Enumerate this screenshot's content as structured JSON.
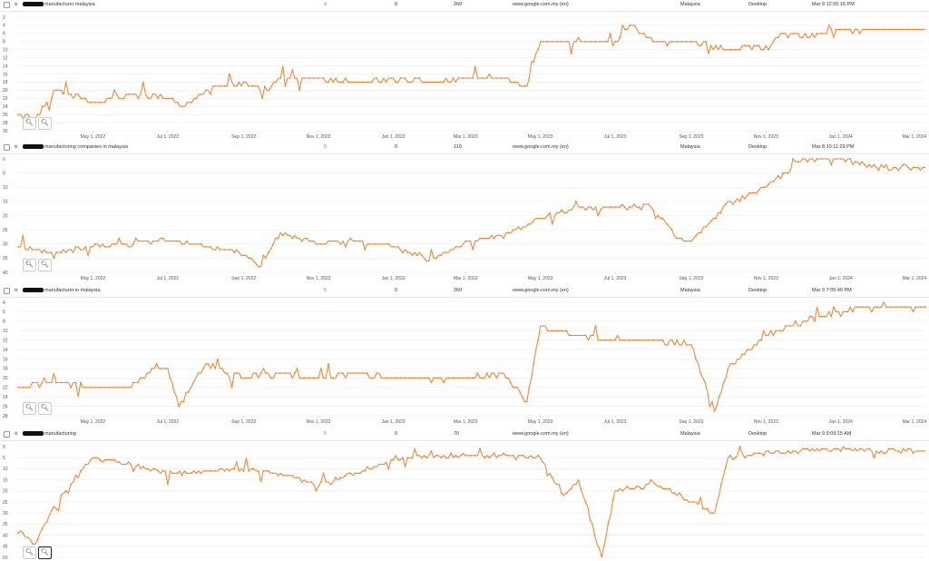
{
  "rows": [
    {
      "keyword": "manufacturer malaysia",
      "volume": "4",
      "col_b": "0",
      "col_c": "260",
      "engine": "www.google.com.my (en)",
      "country": "Malaysia",
      "device": "Desktop",
      "updated": "Mar 9 12:55:16 PM"
    },
    {
      "keyword": "manufacturing companies in malaysia",
      "volume": "5",
      "col_b": "0",
      "col_c": "110",
      "engine": "www.google.com.my (en)",
      "country": "Malaysia",
      "device": "Desktop",
      "updated": "Mar 8 10:11:29 PM"
    },
    {
      "keyword": "manufacturer in malaysia",
      "volume": "5",
      "col_b": "0",
      "col_c": "260",
      "engine": "www.google.com.my (en)",
      "country": "Malaysia",
      "device": "Desktop",
      "updated": "Mar 9 7:05:49 PM"
    },
    {
      "keyword": "manufacturing",
      "volume": "5",
      "col_b": "0",
      "col_c": "70",
      "engine": "www.google.com.my (en)",
      "country": "Malaysia",
      "device": "Desktop",
      "updated": "Mar 9 9:09:15 AM"
    }
  ],
  "zoom_icons": [
    "zoom-out-icon",
    "zoom-in-icon"
  ],
  "accent_color": "#f0883a",
  "chart_data": [
    {
      "type": "line",
      "ylim": [
        30,
        2
      ],
      "yticks": [
        "2",
        "4",
        "6",
        "8",
        "10",
        "12",
        "14",
        "16",
        "18",
        "20",
        "22",
        "24",
        "26",
        "28",
        "30"
      ],
      "xticks": [
        "May 1, 2022",
        "Jul 1, 2022",
        "Sep 1, 2022",
        "Nov 1, 2022",
        "Jan 1, 2023",
        "Mar 1, 2023",
        "May 1, 2023",
        "Jul 1, 2023",
        "Sep 1, 2023",
        "Nov 1, 2023",
        "Jan 1, 2024",
        "Mar 1, 2024"
      ],
      "x_range": [
        "2022-03-01",
        "2024-03-10"
      ],
      "series": [
        {
          "x": [
            "2022-03-01",
            "2022-03-15",
            "2022-04-01",
            "2022-05-01",
            "2022-06-01",
            "2022-07-01",
            "2022-07-15",
            "2022-08-01",
            "2022-09-01",
            "2022-09-20",
            "2022-10-01",
            "2022-11-01",
            "2022-12-01",
            "2023-01-01",
            "2023-02-01",
            "2023-03-01",
            "2023-04-01",
            "2023-04-20",
            "2023-05-01",
            "2023-06-01",
            "2023-07-01",
            "2023-07-15",
            "2023-08-01",
            "2023-09-01",
            "2023-10-01",
            "2023-11-01",
            "2023-11-15",
            "2023-12-01",
            "2024-01-01",
            "2024-02-01",
            "2024-03-10"
          ],
          "values": [
            26,
            27,
            20,
            23,
            21,
            22,
            24,
            20,
            18,
            20,
            17,
            17,
            18,
            17,
            18,
            17,
            17,
            19,
            8,
            8,
            8,
            4,
            8,
            8,
            10,
            9,
            6,
            7,
            5,
            5,
            5
          ]
        }
      ]
    },
    {
      "type": "line",
      "ylim": [
        40,
        0
      ],
      "yticks": [
        "0",
        "5",
        "10",
        "15",
        "20",
        "25",
        "30",
        "35",
        "40"
      ],
      "xticks": [
        "May 1, 2022",
        "Jul 1, 2022",
        "Sep 1, 2022",
        "Nov 1, 2022",
        "Jan 1, 2023",
        "Mar 1, 2023",
        "May 1, 2023",
        "Jul 1, 2023",
        "Sep 1, 2023",
        "Nov 1, 2023",
        "Jan 1, 2024",
        "Mar 1, 2024"
      ],
      "x_range": [
        "2022-03-01",
        "2024-03-10"
      ],
      "series": [
        {
          "x": [
            "2022-03-01",
            "2022-04-01",
            "2022-05-01",
            "2022-06-01",
            "2022-07-01",
            "2022-08-01",
            "2022-09-01",
            "2022-09-15",
            "2022-10-01",
            "2022-11-01",
            "2022-12-01",
            "2023-01-01",
            "2023-02-01",
            "2023-03-01",
            "2023-04-01",
            "2023-05-01",
            "2023-06-01",
            "2023-07-01",
            "2023-08-01",
            "2023-08-20",
            "2023-09-01",
            "2023-10-01",
            "2023-11-01",
            "2023-12-01",
            "2024-01-01",
            "2024-02-01",
            "2024-03-10"
          ],
          "values": [
            31,
            33,
            31,
            30,
            28,
            31,
            33,
            38,
            26,
            30,
            29,
            31,
            36,
            29,
            27,
            21,
            17,
            17,
            17,
            28,
            29,
            16,
            10,
            0,
            0,
            3,
            3
          ]
        }
      ]
    },
    {
      "type": "line",
      "ylim": [
        28,
        4
      ],
      "yticks": [
        "4",
        "6",
        "8",
        "10",
        "12",
        "14",
        "16",
        "18",
        "20",
        "22",
        "24",
        "26",
        "28"
      ],
      "xticks": [
        "May 1, 2022",
        "Jul 1, 2022",
        "Sep 1, 2022",
        "Nov 1, 2022",
        "Jan 1, 2023",
        "Mar 1, 2023",
        "May 1, 2023",
        "Jul 1, 2023",
        "Sep 1, 2023",
        "Nov 1, 2023",
        "Jan 1, 2024",
        "Mar 1, 2024"
      ],
      "x_range": [
        "2022-03-01",
        "2024-03-10"
      ],
      "series": [
        {
          "x": [
            "2022-03-01",
            "2022-04-01",
            "2022-05-01",
            "2022-06-01",
            "2022-06-20",
            "2022-07-01",
            "2022-07-10",
            "2022-08-01",
            "2022-09-01",
            "2022-10-01",
            "2022-11-01",
            "2022-12-01",
            "2023-01-01",
            "2023-02-01",
            "2023-03-01",
            "2023-04-01",
            "2023-04-20",
            "2023-05-01",
            "2023-06-01",
            "2023-07-01",
            "2023-08-01",
            "2023-09-01",
            "2023-09-20",
            "2023-10-01",
            "2023-11-01",
            "2023-12-01",
            "2024-01-01",
            "2024-02-01",
            "2024-03-10"
          ],
          "values": [
            22,
            21,
            22,
            22,
            18,
            18,
            26,
            17,
            20,
            19,
            20,
            19,
            20,
            20,
            20,
            19,
            25,
            9,
            11,
            12,
            12,
            13,
            27,
            18,
            11,
            8,
            6,
            5,
            5
          ]
        }
      ]
    },
    {
      "type": "line",
      "ylim": [
        50,
        0
      ],
      "yticks": [
        "0",
        "5",
        "10",
        "15",
        "20",
        "25",
        "30",
        "35",
        "40",
        "45",
        "50"
      ],
      "xticks": [],
      "x_range": [
        "2022-03-01",
        "2024-03-10"
      ],
      "series": [
        {
          "x": [
            "2022-03-01",
            "2022-03-15",
            "2022-04-01",
            "2022-05-01",
            "2022-06-01",
            "2022-07-01",
            "2022-08-01",
            "2022-09-01",
            "2022-10-01",
            "2022-11-01",
            "2022-12-01",
            "2023-01-01",
            "2023-02-01",
            "2023-03-01",
            "2023-04-01",
            "2023-05-01",
            "2023-05-20",
            "2023-06-01",
            "2023-06-20",
            "2023-07-01",
            "2023-08-01",
            "2023-09-01",
            "2023-09-20",
            "2023-10-01",
            "2023-11-01",
            "2023-12-01",
            "2024-01-01",
            "2024-02-01",
            "2024-03-10"
          ],
          "values": [
            38,
            44,
            25,
            5,
            8,
            12,
            11,
            10,
            12,
            17,
            12,
            6,
            4,
            4,
            4,
            5,
            22,
            15,
            50,
            20,
            16,
            25,
            30,
            5,
            3,
            2,
            1,
            2,
            2
          ]
        }
      ]
    }
  ]
}
